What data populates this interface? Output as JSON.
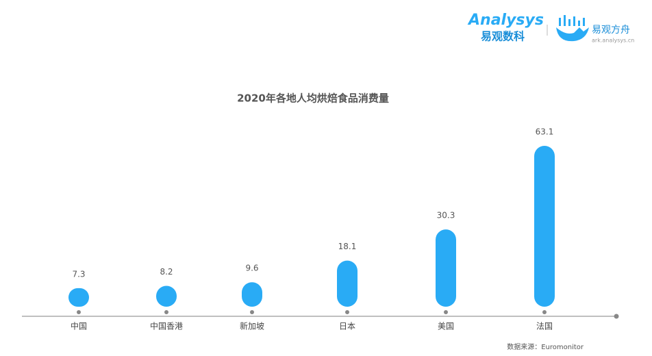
{
  "logo": {
    "brand": "Analysys",
    "brand_cn": "易观数科",
    "product_cn": "易观方舟",
    "product_url": "ark.analysys.cn"
  },
  "chart_data": {
    "type": "bar",
    "title": "2020年各地人均烘焙食品消费量",
    "categories": [
      "中国",
      "中国香港",
      "新加坡",
      "日本",
      "美国",
      "法国"
    ],
    "values": [
      7.3,
      8.2,
      9.6,
      18.1,
      30.3,
      63.1
    ],
    "color": "#29abf5",
    "source": "数据来源：Euromonitor"
  }
}
